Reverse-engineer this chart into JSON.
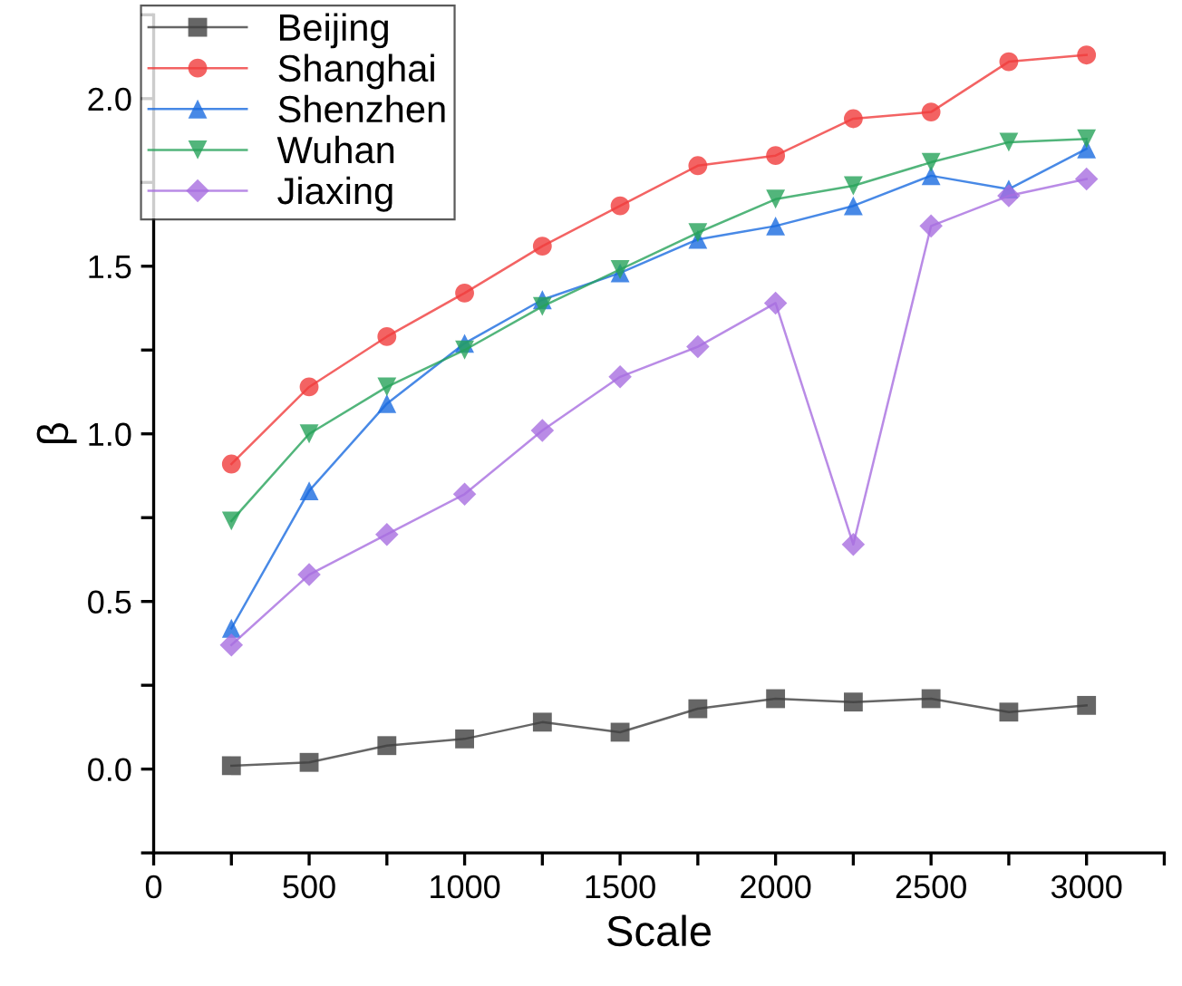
{
  "chart_data": {
    "type": "line",
    "xlabel": "Scale",
    "ylabel": "β",
    "x": [
      250,
      500,
      750,
      1000,
      1250,
      1500,
      1750,
      2000,
      2250,
      2500,
      2750,
      3000
    ],
    "series": [
      {
        "name": "Beijing",
        "color": "#404040",
        "marker": "square",
        "values": [
          0.01,
          0.02,
          0.07,
          0.09,
          0.14,
          0.11,
          0.18,
          0.21,
          0.2,
          0.21,
          0.17,
          0.19
        ]
      },
      {
        "name": "Shanghai",
        "color": "#f03c3c",
        "marker": "circle",
        "values": [
          0.91,
          1.14,
          1.29,
          1.42,
          1.56,
          1.68,
          1.8,
          1.83,
          1.94,
          1.96,
          2.11,
          2.13
        ]
      },
      {
        "name": "Shenzhen",
        "color": "#1a6be0",
        "marker": "triangle",
        "values": [
          0.42,
          0.83,
          1.09,
          1.27,
          1.4,
          1.48,
          1.58,
          1.62,
          1.68,
          1.77,
          1.73,
          1.85
        ]
      },
      {
        "name": "Wuhan",
        "color": "#27a35a",
        "marker": "triangle_down",
        "values": [
          0.74,
          1.0,
          1.14,
          1.25,
          1.38,
          1.49,
          1.6,
          1.7,
          1.74,
          1.81,
          1.87,
          1.88
        ]
      },
      {
        "name": "Jiaxing",
        "color": "#a86ee0",
        "marker": "diamond",
        "values": [
          0.37,
          0.58,
          0.7,
          0.82,
          1.01,
          1.17,
          1.26,
          1.39,
          0.67,
          1.62,
          1.71,
          1.76
        ]
      }
    ],
    "xlim": [
      0,
      3250
    ],
    "ylim": [
      -0.25,
      2.25
    ],
    "xticks": [
      0,
      {
        "value": 250,
        "label": null
      },
      500,
      {
        "value": 750,
        "label": null
      },
      1000,
      {
        "value": 1250,
        "label": null
      },
      1500,
      {
        "value": 1750,
        "label": null
      },
      2000,
      {
        "value": 2250,
        "label": null
      },
      2500,
      {
        "value": 2750,
        "label": null
      },
      3000,
      {
        "value": 3250,
        "label": null
      }
    ],
    "yticks": [
      {
        "value": -0.25,
        "label": null
      },
      {
        "value": 0,
        "label": "0.0"
      },
      {
        "value": 0.25,
        "label": null
      },
      0.5,
      {
        "value": 0.75,
        "label": null
      },
      {
        "value": 1,
        "label": "1.0"
      },
      {
        "value": 1.25,
        "label": null
      },
      1.5,
      {
        "value": 1.75,
        "label": null
      },
      {
        "value": 2,
        "label": "2.0"
      },
      {
        "value": 2.25,
        "label": null
      }
    ],
    "grid": false,
    "legend": "top left",
    "line_style": "solid"
  }
}
